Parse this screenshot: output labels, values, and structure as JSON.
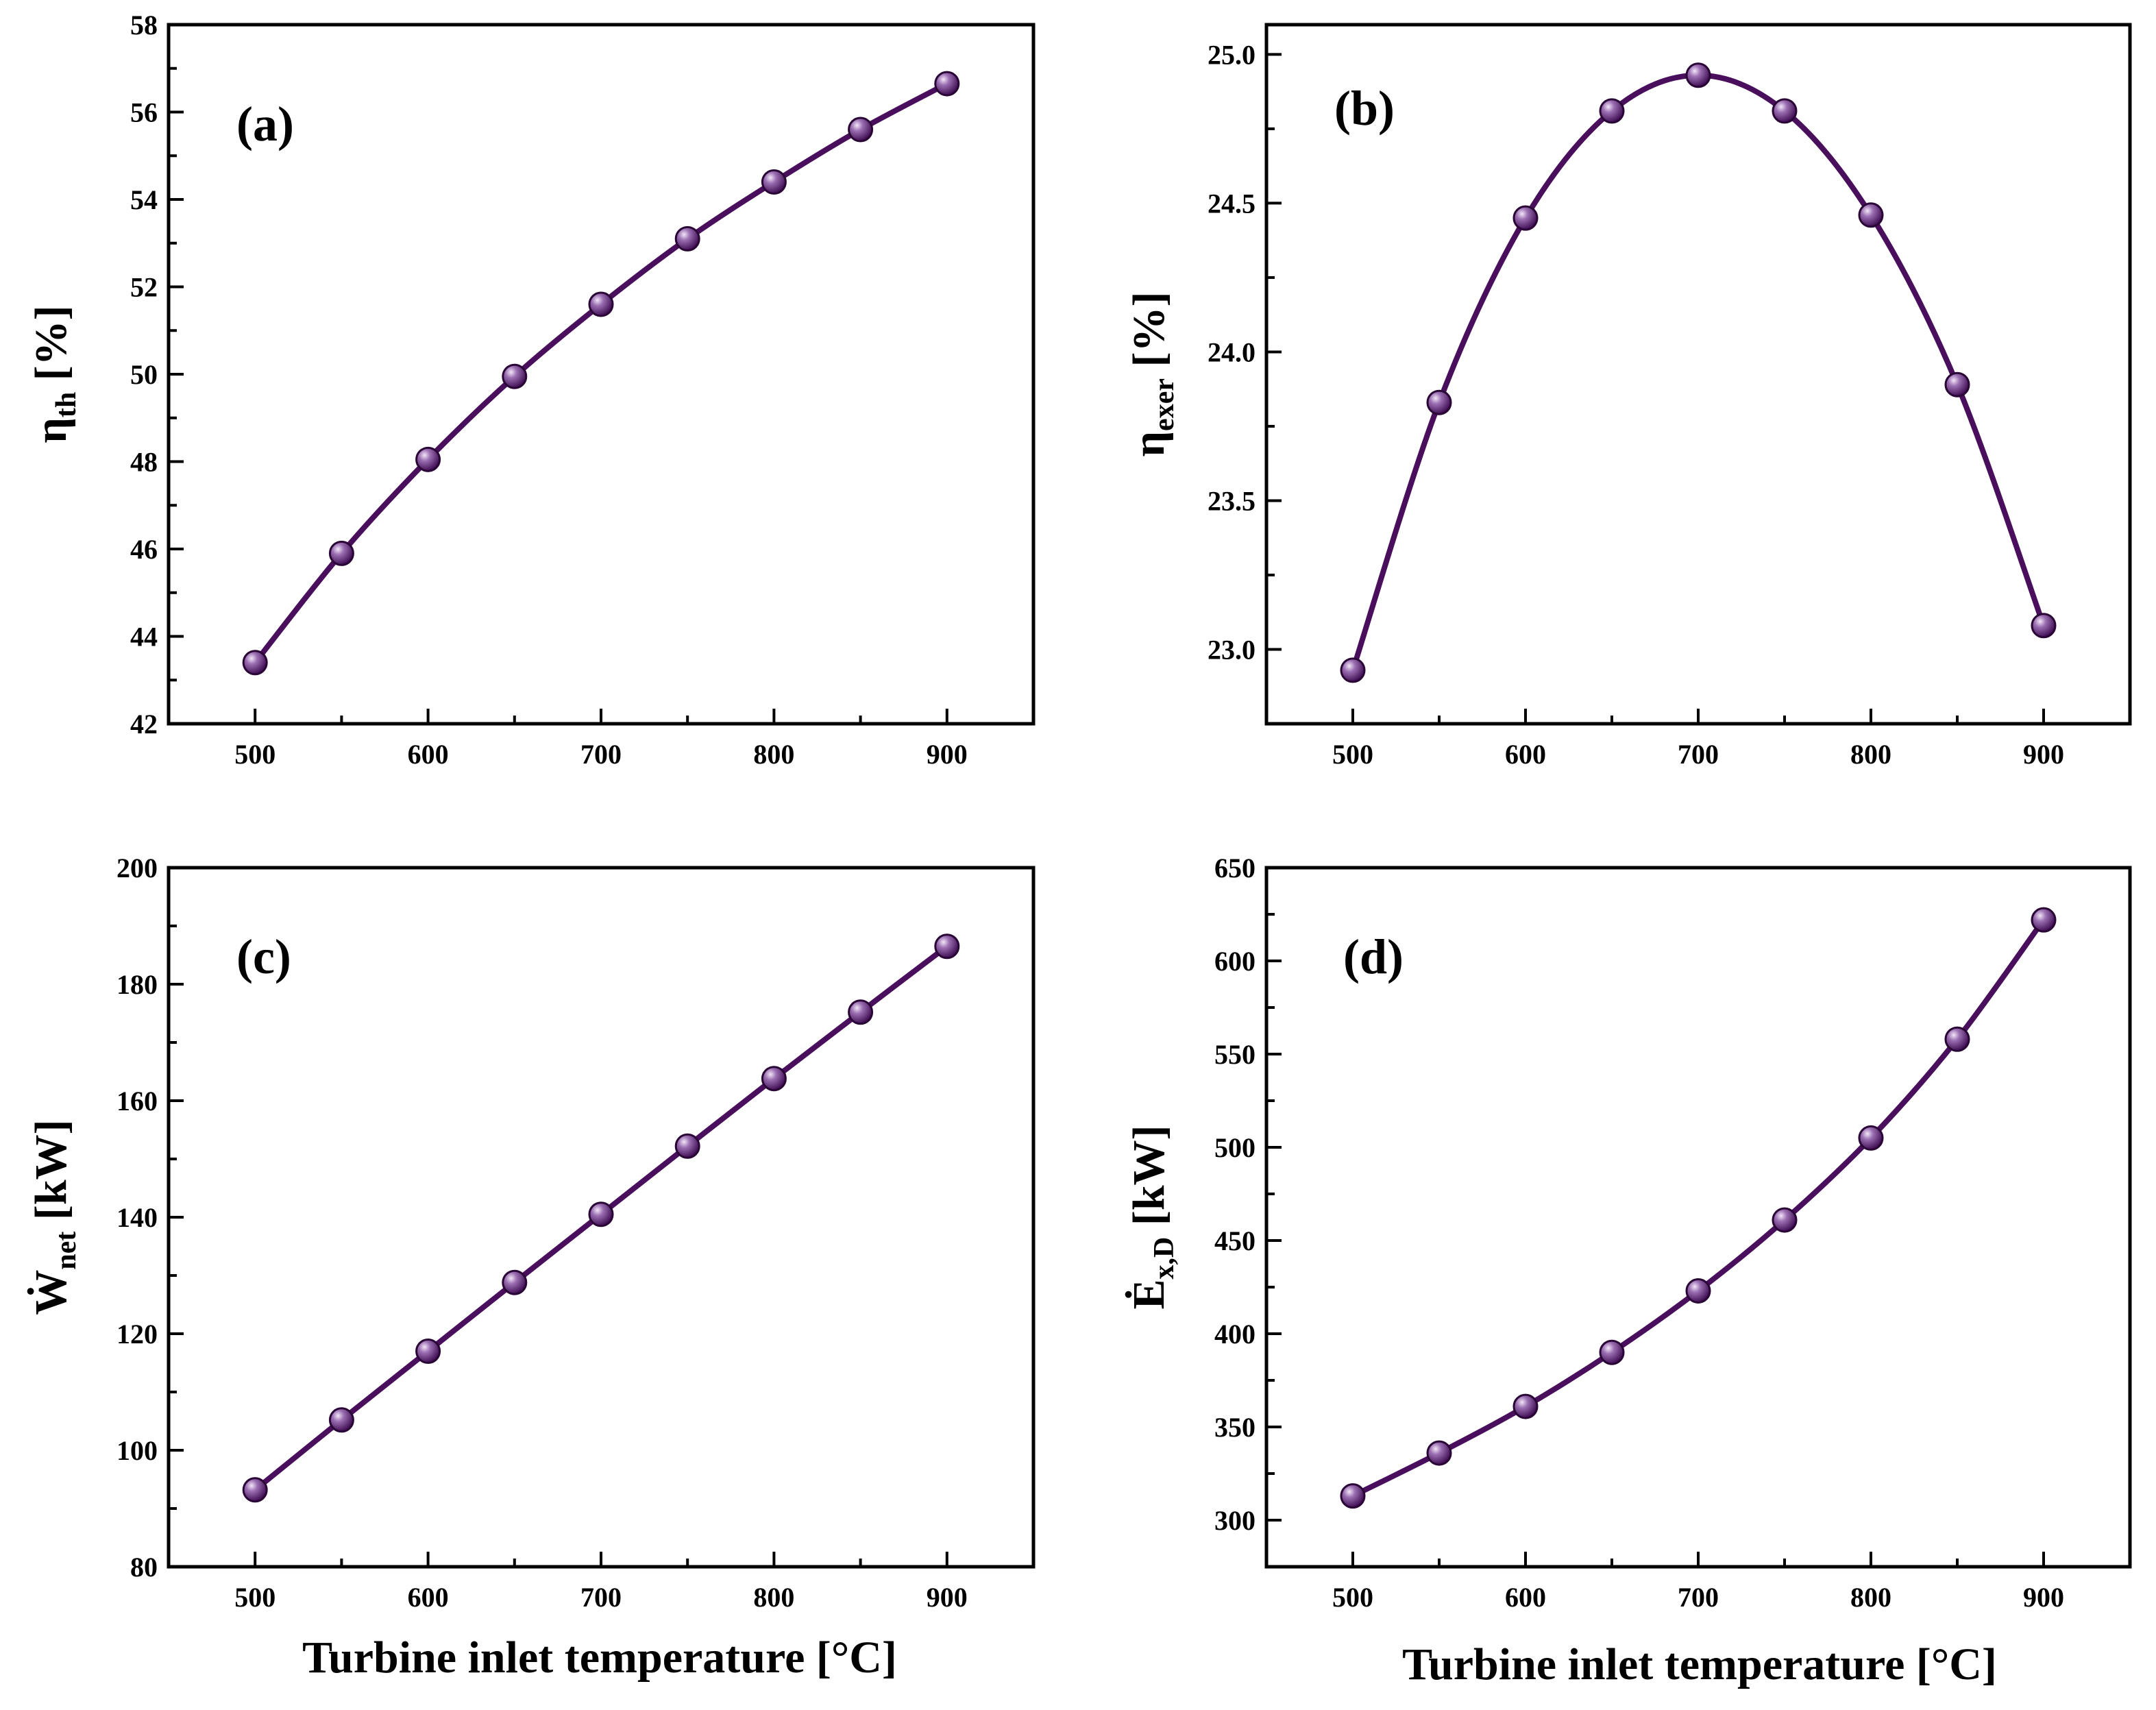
{
  "figure": {
    "xlabel": "Turbine inlet temperature [°C]",
    "colors": {
      "line": "#4a0f5c",
      "marker_light": "#e8d6f0",
      "marker_dark": "#3d0a50",
      "axes": "#000000"
    }
  },
  "chart_data": [
    {
      "type": "line",
      "panel": "(a)",
      "ylabel": "η_th [%]",
      "ylabel_main": "η",
      "ylabel_sub": "th",
      "ylabel_unit": "[%]",
      "xlabel": "",
      "x": [
        500,
        550,
        600,
        650,
        700,
        750,
        800,
        850,
        900
      ],
      "y": [
        43.4,
        45.9,
        48.05,
        49.95,
        51.6,
        53.1,
        54.4,
        55.6,
        56.65
      ],
      "xlim": [
        450,
        950
      ],
      "ylim": [
        42,
        58
      ],
      "xticks": [
        500,
        600,
        700,
        800,
        900
      ],
      "yticks": [
        42,
        44,
        46,
        48,
        50,
        52,
        54,
        56,
        58
      ],
      "ytick_labels": [
        "42",
        "44",
        "46",
        "48",
        "50",
        "52",
        "54",
        "56",
        "58"
      ]
    },
    {
      "type": "line",
      "panel": "(b)",
      "ylabel": "η_exer [%]",
      "ylabel_main": "η",
      "ylabel_sub": "exer",
      "ylabel_unit": "[%]",
      "xlabel": "",
      "x": [
        500,
        550,
        600,
        650,
        700,
        750,
        800,
        850,
        900
      ],
      "y": [
        22.93,
        23.83,
        24.45,
        24.81,
        24.93,
        24.81,
        24.46,
        23.89,
        23.08
      ],
      "xlim": [
        450,
        950
      ],
      "ylim": [
        22.75,
        25.1
      ],
      "xticks": [
        500,
        600,
        700,
        800,
        900
      ],
      "yticks": [
        23.0,
        23.5,
        24.0,
        24.5,
        25.0
      ],
      "ytick_labels": [
        "23.0",
        "23.5",
        "24.0",
        "24.5",
        "25.0"
      ]
    },
    {
      "type": "line",
      "panel": "(c)",
      "ylabel": "Ẇ_net [kW]",
      "ylabel_main": "Ẇ",
      "ylabel_sub": "net",
      "ylabel_unit": "[kW]",
      "xlabel": "Turbine inlet temperature [°C]",
      "x": [
        500,
        550,
        600,
        650,
        700,
        750,
        800,
        850,
        900
      ],
      "y": [
        93.2,
        105.2,
        117.0,
        128.8,
        140.5,
        152.2,
        163.8,
        175.2,
        186.5
      ],
      "xlim": [
        450,
        950
      ],
      "ylim": [
        80,
        200
      ],
      "xticks": [
        500,
        600,
        700,
        800,
        900
      ],
      "yticks": [
        80,
        100,
        120,
        140,
        160,
        180,
        200
      ],
      "ytick_labels": [
        "80",
        "100",
        "120",
        "140",
        "160",
        "180",
        "200"
      ]
    },
    {
      "type": "line",
      "panel": "(d)",
      "ylabel": "Ė_x,D [kW]",
      "ylabel_main": "Ė",
      "ylabel_sub": "x,D",
      "ylabel_unit": "[kW]",
      "xlabel": "Turbine inlet temperature [°C]",
      "x": [
        500,
        550,
        600,
        650,
        700,
        750,
        800,
        850,
        900
      ],
      "y": [
        313,
        336,
        361,
        390,
        423,
        461,
        505,
        558,
        622
      ],
      "xlim": [
        450,
        950
      ],
      "ylim": [
        275,
        650
      ],
      "xticks": [
        500,
        600,
        700,
        800,
        900
      ],
      "yticks": [
        300,
        350,
        400,
        450,
        500,
        550,
        600,
        650
      ],
      "ytick_labels": [
        "300",
        "350",
        "400",
        "450",
        "500",
        "550",
        "600",
        "650"
      ]
    }
  ]
}
